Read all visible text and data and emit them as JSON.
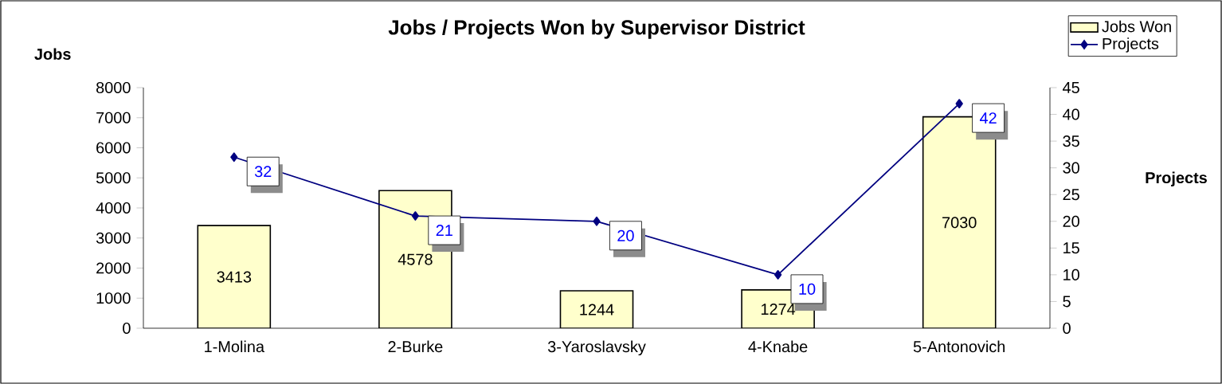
{
  "chart_data": {
    "type": "bar",
    "title": "Jobs / Projects Won by Supervisor District",
    "ylabel": "Jobs",
    "y2label": "Projects",
    "categories": [
      "1-Molina",
      "2-Burke",
      "3-Yaroslavsky",
      "4-Knabe",
      "5-Antonovich"
    ],
    "series": [
      {
        "name": "Jobs Won",
        "color": "#ffffcc",
        "values": [
          3413,
          4578,
          1244,
          1274,
          7030
        ]
      },
      {
        "name": "Projects",
        "type": "line",
        "axis": "y2",
        "color": "#000080",
        "marker": "diamond",
        "values": [
          32,
          21,
          20,
          10,
          42
        ]
      }
    ],
    "ylim": [
      0,
      8000
    ],
    "yticks": [
      0,
      1000,
      2000,
      3000,
      4000,
      5000,
      6000,
      7000,
      8000
    ],
    "y2lim": [
      0,
      45
    ],
    "y2ticks": [
      0,
      5,
      10,
      15,
      20,
      25,
      30,
      35,
      40,
      45
    ],
    "legend": "top right",
    "data_labels": true
  }
}
